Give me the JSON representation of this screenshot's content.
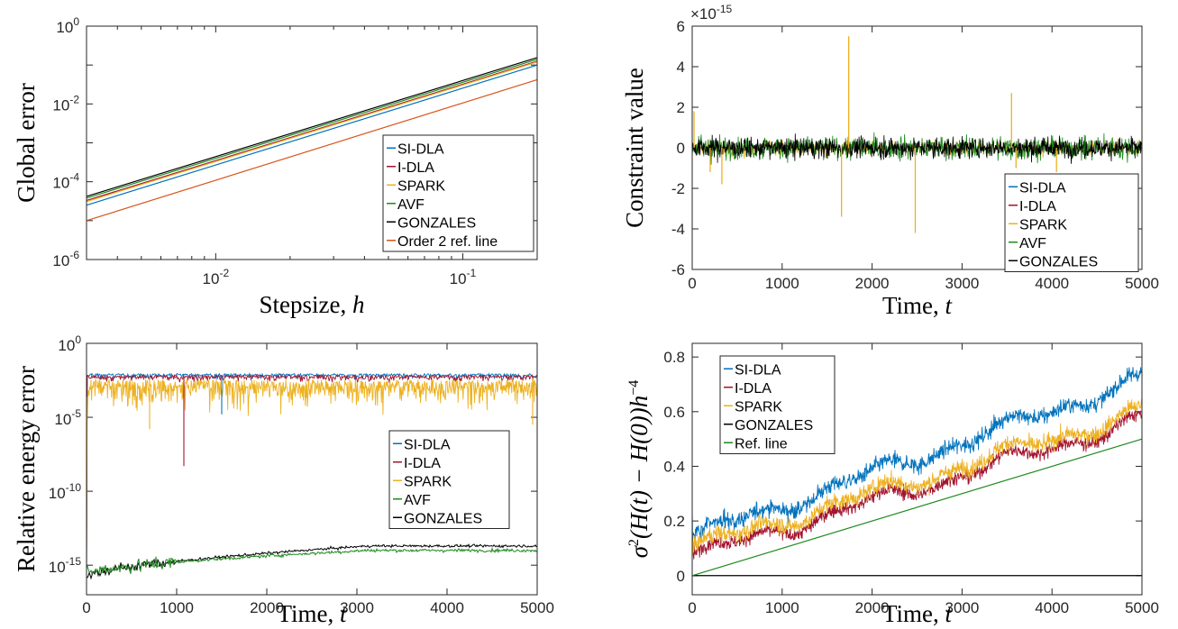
{
  "colors": {
    "SI-DLA": "#0072BD",
    "I-DLA": "#A2142F",
    "SPARK": "#EDB120",
    "AVF": "#1F8A1F",
    "GONZALES": "#000000",
    "ref": "#D95319",
    "ref_line": "#1F8A1F"
  },
  "chart_data": [
    {
      "id": "global-error",
      "type": "line",
      "xscale": "log",
      "yscale": "log",
      "xlim": [
        0.003,
        0.2
      ],
      "ylim": [
        1e-06,
        1
      ],
      "xticks": [
        "10^-2",
        "10^-1"
      ],
      "yticks": [
        "10^-6",
        "10^-4",
        "10^-2",
        "10^0"
      ],
      "xlabel_plain": "Stepsize, ",
      "xlabel_var": "h",
      "ylabel": "Global error",
      "x": [
        0.003,
        0.2
      ],
      "series": [
        {
          "name": "SI-DLA",
          "values": [
            2.5e-05,
            0.1
          ]
        },
        {
          "name": "I-DLA",
          "values": [
            3.3e-05,
            0.125
          ]
        },
        {
          "name": "SPARK",
          "values": [
            3.1e-05,
            0.12
          ]
        },
        {
          "name": "AVF",
          "values": [
            3.8e-05,
            0.14
          ]
        },
        {
          "name": "GONZALES",
          "values": [
            4.2e-05,
            0.155
          ]
        },
        {
          "name": "Order 2 ref. line",
          "values": [
            1e-05,
            0.042
          ]
        }
      ],
      "legend": "lower-right"
    },
    {
      "id": "constraint-value",
      "type": "line",
      "xlim": [
        0,
        5000
      ],
      "ylim": [
        -6,
        6
      ],
      "multiplier_base": "×10",
      "multiplier_exp": "-15",
      "xticks": [
        "0",
        "1000",
        "2000",
        "3000",
        "4000",
        "5000"
      ],
      "yticks": [
        "-6",
        "-4",
        "-2",
        "0",
        "2",
        "4",
        "6"
      ],
      "xlabel_plain": "Time, ",
      "xlabel_var": "t",
      "ylabel": "Constraint value",
      "series": [
        "SI-DLA",
        "I-DLA",
        "SPARK",
        "AVF",
        "GONZALES"
      ],
      "noise_amplitude": {
        "GONZALES": 0.7,
        "AVF": 0.8
      },
      "spikes": [
        {
          "series": "SPARK",
          "x": 20,
          "y": 1.8
        },
        {
          "series": "SPARK",
          "x": 200,
          "y": -1.2
        },
        {
          "series": "SPARK",
          "x": 330,
          "y": -1.8
        },
        {
          "series": "SPARK",
          "x": 1660,
          "y": -3.4
        },
        {
          "series": "SPARK",
          "x": 1740,
          "y": 5.5
        },
        {
          "series": "SPARK",
          "x": 2480,
          "y": -4.2
        },
        {
          "series": "SPARK",
          "x": 3550,
          "y": 2.7
        },
        {
          "series": "SPARK",
          "x": 3600,
          "y": -1.0
        },
        {
          "series": "SPARK",
          "x": 4050,
          "y": -1.2
        }
      ],
      "legend": "lower-right"
    },
    {
      "id": "relative-energy-error",
      "type": "line",
      "yscale": "log",
      "xlim": [
        0,
        5000
      ],
      "ylim": [
        1e-17,
        1
      ],
      "xticks": [
        "0",
        "1000",
        "2000",
        "3000",
        "4000",
        "5000"
      ],
      "yticks": [
        "10^-15",
        "10^-10",
        "10^-5",
        "10^0"
      ],
      "xlabel_plain": "Time, ",
      "xlabel_var": "t",
      "ylabel": "Relative energy error",
      "series": [
        "SI-DLA",
        "I-DLA",
        "SPARK",
        "AVF",
        "GONZALES"
      ],
      "levels_log10": {
        "SI-DLA": -2.2,
        "I-DLA": -2.3,
        "SPARK": -2.6,
        "AVF_start": -15.6,
        "AVF_end": -14.0,
        "GONZALES_start": -15.8,
        "GONZALES_end": -13.7
      },
      "dips": [
        {
          "series": "I-DLA",
          "x": 1080,
          "y_log10": -8.3
        },
        {
          "series": "SPARK",
          "x": 700,
          "y_log10": -5.8
        },
        {
          "series": "SI-DLA",
          "x": 1500,
          "y_log10": -4.8
        },
        {
          "series": "SPARK",
          "x": 4950,
          "y_log10": -5.5
        }
      ],
      "legend": "center-right"
    },
    {
      "id": "energy-variance",
      "type": "line",
      "xlim": [
        0,
        5000
      ],
      "ylim": [
        -0.07,
        0.85
      ],
      "xticks": [
        "0",
        "1000",
        "2000",
        "3000",
        "4000",
        "5000"
      ],
      "yticks": [
        "0",
        "0.2",
        "0.4",
        "0.6",
        "0.8"
      ],
      "xlabel_plain": "Time, ",
      "xlabel_var": "t",
      "ylabel_parts": [
        "σ",
        "2",
        "(H(t) − H(0))h",
        "−4"
      ],
      "series": [
        {
          "name": "SI-DLA",
          "start": 0.14,
          "end": 0.72
        },
        {
          "name": "I-DLA",
          "start": 0.07,
          "end": 0.57
        },
        {
          "name": "SPARK",
          "start": 0.1,
          "end": 0.6
        },
        {
          "name": "GONZALES",
          "start": 0.0,
          "end": 0.0
        },
        {
          "name": "Ref. line",
          "start": 0.0,
          "end": 0.5
        }
      ],
      "legend": "top-left"
    }
  ]
}
